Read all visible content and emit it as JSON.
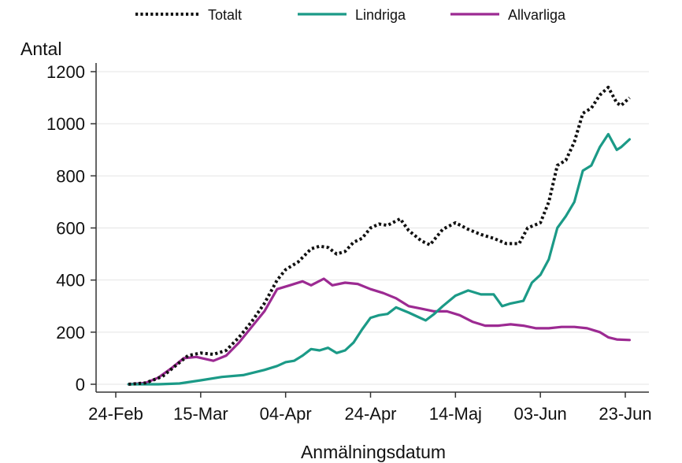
{
  "chart_data": {
    "type": "line",
    "title": "",
    "xlabel": "Anmälningsdatum",
    "ylabel": "Antal",
    "x_start": "2020-02-24",
    "x_end": "2020-06-23",
    "x_ticks": [
      {
        "label": "24-Feb",
        "date": "2020-02-24"
      },
      {
        "label": "15-Mar",
        "date": "2020-03-15"
      },
      {
        "label": "04-Apr",
        "date": "2020-04-04"
      },
      {
        "label": "24-Apr",
        "date": "2020-04-24"
      },
      {
        "label": "14-Maj",
        "date": "2020-05-14"
      },
      {
        "label": "03-Jun",
        "date": "2020-06-03"
      },
      {
        "label": "23-Jun",
        "date": "2020-06-23"
      }
    ],
    "ylim": [
      0,
      1200
    ],
    "y_ticks": [
      0,
      200,
      400,
      600,
      800,
      1000,
      1200
    ],
    "grid": true,
    "legend_position": "top",
    "series": [
      {
        "name": "Totalt",
        "color": "#111111",
        "style": "dotted",
        "points": [
          [
            "2020-02-27",
            0
          ],
          [
            "2020-03-02",
            5
          ],
          [
            "2020-03-06",
            30
          ],
          [
            "2020-03-09",
            70
          ],
          [
            "2020-03-12",
            110
          ],
          [
            "2020-03-15",
            120
          ],
          [
            "2020-03-18",
            115
          ],
          [
            "2020-03-21",
            130
          ],
          [
            "2020-03-24",
            180
          ],
          [
            "2020-03-27",
            240
          ],
          [
            "2020-03-30",
            310
          ],
          [
            "2020-04-02",
            400
          ],
          [
            "2020-04-04",
            440
          ],
          [
            "2020-04-07",
            470
          ],
          [
            "2020-04-10",
            520
          ],
          [
            "2020-04-12",
            530
          ],
          [
            "2020-04-14",
            525
          ],
          [
            "2020-04-16",
            500
          ],
          [
            "2020-04-18",
            510
          ],
          [
            "2020-04-20",
            545
          ],
          [
            "2020-04-22",
            560
          ],
          [
            "2020-04-24",
            600
          ],
          [
            "2020-04-26",
            615
          ],
          [
            "2020-04-28",
            610
          ],
          [
            "2020-05-01",
            635
          ],
          [
            "2020-05-03",
            590
          ],
          [
            "2020-05-06",
            550
          ],
          [
            "2020-05-08",
            535
          ],
          [
            "2020-05-11",
            595
          ],
          [
            "2020-05-14",
            620
          ],
          [
            "2020-05-17",
            595
          ],
          [
            "2020-05-20",
            575
          ],
          [
            "2020-05-23",
            560
          ],
          [
            "2020-05-26",
            540
          ],
          [
            "2020-05-29",
            540
          ],
          [
            "2020-05-31",
            600
          ],
          [
            "2020-06-03",
            620
          ],
          [
            "2020-06-05",
            700
          ],
          [
            "2020-06-07",
            840
          ],
          [
            "2020-06-09",
            860
          ],
          [
            "2020-06-11",
            930
          ],
          [
            "2020-06-13",
            1040
          ],
          [
            "2020-06-15",
            1060
          ],
          [
            "2020-06-17",
            1110
          ],
          [
            "2020-06-19",
            1140
          ],
          [
            "2020-06-21",
            1080
          ],
          [
            "2020-06-22",
            1070
          ],
          [
            "2020-06-24",
            1100
          ]
        ]
      },
      {
        "name": "Lindriga",
        "color": "#1b9a87",
        "style": "solid",
        "points": [
          [
            "2020-02-27",
            0
          ],
          [
            "2020-03-05",
            0
          ],
          [
            "2020-03-10",
            3
          ],
          [
            "2020-03-15",
            15
          ],
          [
            "2020-03-20",
            28
          ],
          [
            "2020-03-25",
            35
          ],
          [
            "2020-03-30",
            55
          ],
          [
            "2020-04-02",
            70
          ],
          [
            "2020-04-04",
            85
          ],
          [
            "2020-04-06",
            90
          ],
          [
            "2020-04-08",
            110
          ],
          [
            "2020-04-10",
            135
          ],
          [
            "2020-04-12",
            130
          ],
          [
            "2020-04-14",
            140
          ],
          [
            "2020-04-16",
            120
          ],
          [
            "2020-04-18",
            130
          ],
          [
            "2020-04-20",
            160
          ],
          [
            "2020-04-22",
            210
          ],
          [
            "2020-04-24",
            255
          ],
          [
            "2020-04-26",
            265
          ],
          [
            "2020-04-28",
            270
          ],
          [
            "2020-04-30",
            295
          ],
          [
            "2020-05-03",
            275
          ],
          [
            "2020-05-05",
            260
          ],
          [
            "2020-05-07",
            245
          ],
          [
            "2020-05-09",
            270
          ],
          [
            "2020-05-11",
            300
          ],
          [
            "2020-05-14",
            340
          ],
          [
            "2020-05-17",
            360
          ],
          [
            "2020-05-20",
            345
          ],
          [
            "2020-05-23",
            345
          ],
          [
            "2020-05-25",
            300
          ],
          [
            "2020-05-27",
            310
          ],
          [
            "2020-05-30",
            320
          ],
          [
            "2020-06-01",
            390
          ],
          [
            "2020-06-03",
            420
          ],
          [
            "2020-06-05",
            480
          ],
          [
            "2020-06-07",
            600
          ],
          [
            "2020-06-09",
            645
          ],
          [
            "2020-06-11",
            700
          ],
          [
            "2020-06-13",
            820
          ],
          [
            "2020-06-15",
            840
          ],
          [
            "2020-06-17",
            910
          ],
          [
            "2020-06-19",
            960
          ],
          [
            "2020-06-21",
            900
          ],
          [
            "2020-06-22",
            910
          ],
          [
            "2020-06-24",
            940
          ]
        ]
      },
      {
        "name": "Allvarliga",
        "color": "#9c2a92",
        "style": "solid",
        "points": [
          [
            "2020-02-27",
            0
          ],
          [
            "2020-03-02",
            5
          ],
          [
            "2020-03-05",
            25
          ],
          [
            "2020-03-08",
            60
          ],
          [
            "2020-03-11",
            100
          ],
          [
            "2020-03-14",
            105
          ],
          [
            "2020-03-18",
            90
          ],
          [
            "2020-03-21",
            110
          ],
          [
            "2020-03-24",
            160
          ],
          [
            "2020-03-27",
            220
          ],
          [
            "2020-03-30",
            280
          ],
          [
            "2020-04-02",
            365
          ],
          [
            "2020-04-05",
            380
          ],
          [
            "2020-04-08",
            395
          ],
          [
            "2020-04-10",
            380
          ],
          [
            "2020-04-13",
            405
          ],
          [
            "2020-04-15",
            380
          ],
          [
            "2020-04-18",
            390
          ],
          [
            "2020-04-21",
            385
          ],
          [
            "2020-04-24",
            365
          ],
          [
            "2020-04-27",
            350
          ],
          [
            "2020-04-30",
            330
          ],
          [
            "2020-05-03",
            300
          ],
          [
            "2020-05-06",
            290
          ],
          [
            "2020-05-09",
            280
          ],
          [
            "2020-05-12",
            280
          ],
          [
            "2020-05-15",
            265
          ],
          [
            "2020-05-18",
            240
          ],
          [
            "2020-05-21",
            225
          ],
          [
            "2020-05-24",
            225
          ],
          [
            "2020-05-27",
            230
          ],
          [
            "2020-05-30",
            225
          ],
          [
            "2020-06-02",
            215
          ],
          [
            "2020-06-05",
            215
          ],
          [
            "2020-06-08",
            220
          ],
          [
            "2020-06-11",
            220
          ],
          [
            "2020-06-14",
            215
          ],
          [
            "2020-06-17",
            200
          ],
          [
            "2020-06-19",
            180
          ],
          [
            "2020-06-21",
            172
          ],
          [
            "2020-06-24",
            170
          ]
        ]
      }
    ]
  }
}
